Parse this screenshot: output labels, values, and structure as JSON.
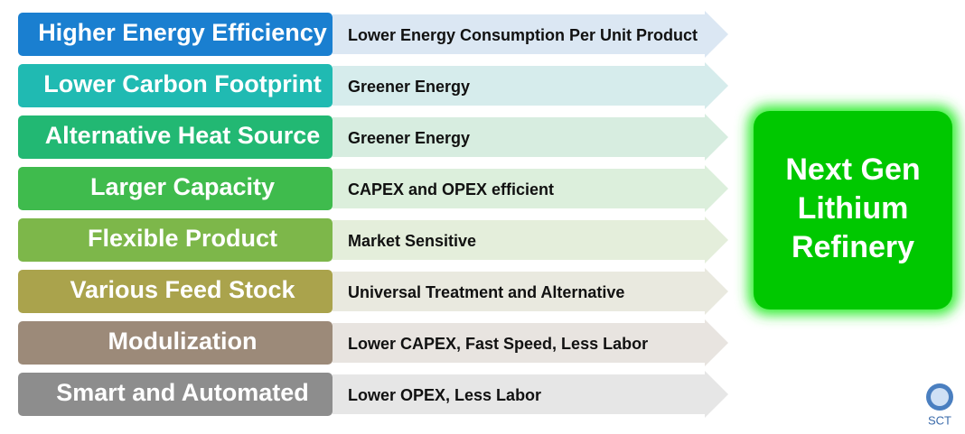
{
  "rows": [
    {
      "label": "Higher Energy Efficiency",
      "benefit": "Lower Energy Consumption Per Unit Product"
    },
    {
      "label": "Lower Carbon Footprint",
      "benefit": "Greener Energy"
    },
    {
      "label": "Alternative Heat Source",
      "benefit": "Greener Energy"
    },
    {
      "label": "Larger Capacity",
      "benefit": "CAPEX and OPEX efficient"
    },
    {
      "label": "Flexible Product",
      "benefit": "Market Sensitive"
    },
    {
      "label": "Various Feed Stock",
      "benefit": "Universal Treatment and Alternative"
    },
    {
      "label": "Modulization",
      "benefit": "Lower CAPEX, Fast Speed, Less Labor"
    },
    {
      "label": "Smart and Automated",
      "benefit": "Lower OPEX, Less Labor"
    }
  ],
  "result": {
    "lines": [
      "Next Gen",
      "Lithium",
      "Refinery"
    ]
  },
  "logo": {
    "text": "SCT"
  }
}
